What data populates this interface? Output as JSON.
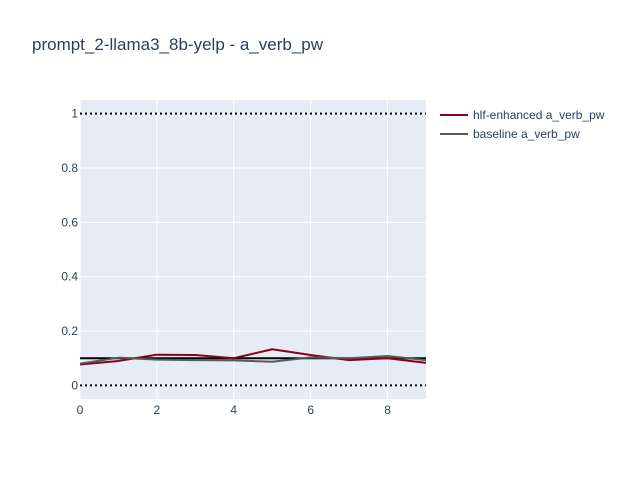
{
  "chart_data": {
    "type": "line",
    "title": "prompt_2-llama3_8b-yelp - a_verb_pw",
    "xlabel": "",
    "ylabel": "",
    "xlim": [
      0,
      9
    ],
    "ylim": [
      -0.05,
      1.05
    ],
    "x_ticks": [
      0,
      2,
      4,
      6,
      8
    ],
    "y_ticks": [
      0,
      0.2,
      0.4,
      0.6,
      0.8,
      1
    ],
    "grid": true,
    "legend_position": "top-right",
    "x": [
      0,
      1,
      2,
      3,
      4,
      5,
      6,
      7,
      8,
      9
    ],
    "series": [
      {
        "name": "hlf-enhanced a_verb_pw",
        "color": "#8b0016",
        "values": [
          0.077,
          0.09,
          0.113,
          0.112,
          0.1,
          0.133,
          0.112,
          0.093,
          0.1,
          0.083
        ]
      },
      {
        "name": "baseline a_verb_pw",
        "color": "#5a5a5a",
        "values": [
          0.08,
          0.102,
          0.095,
          0.093,
          0.092,
          0.087,
          0.103,
          0.1,
          0.108,
          0.093
        ]
      }
    ],
    "reference_lines": [
      {
        "y": 1,
        "style": "dotted",
        "color": "#000000"
      },
      {
        "y": 0,
        "style": "dotted",
        "color": "#000000"
      },
      {
        "y": 0.1,
        "style": "solid",
        "color": "#000000"
      }
    ]
  }
}
